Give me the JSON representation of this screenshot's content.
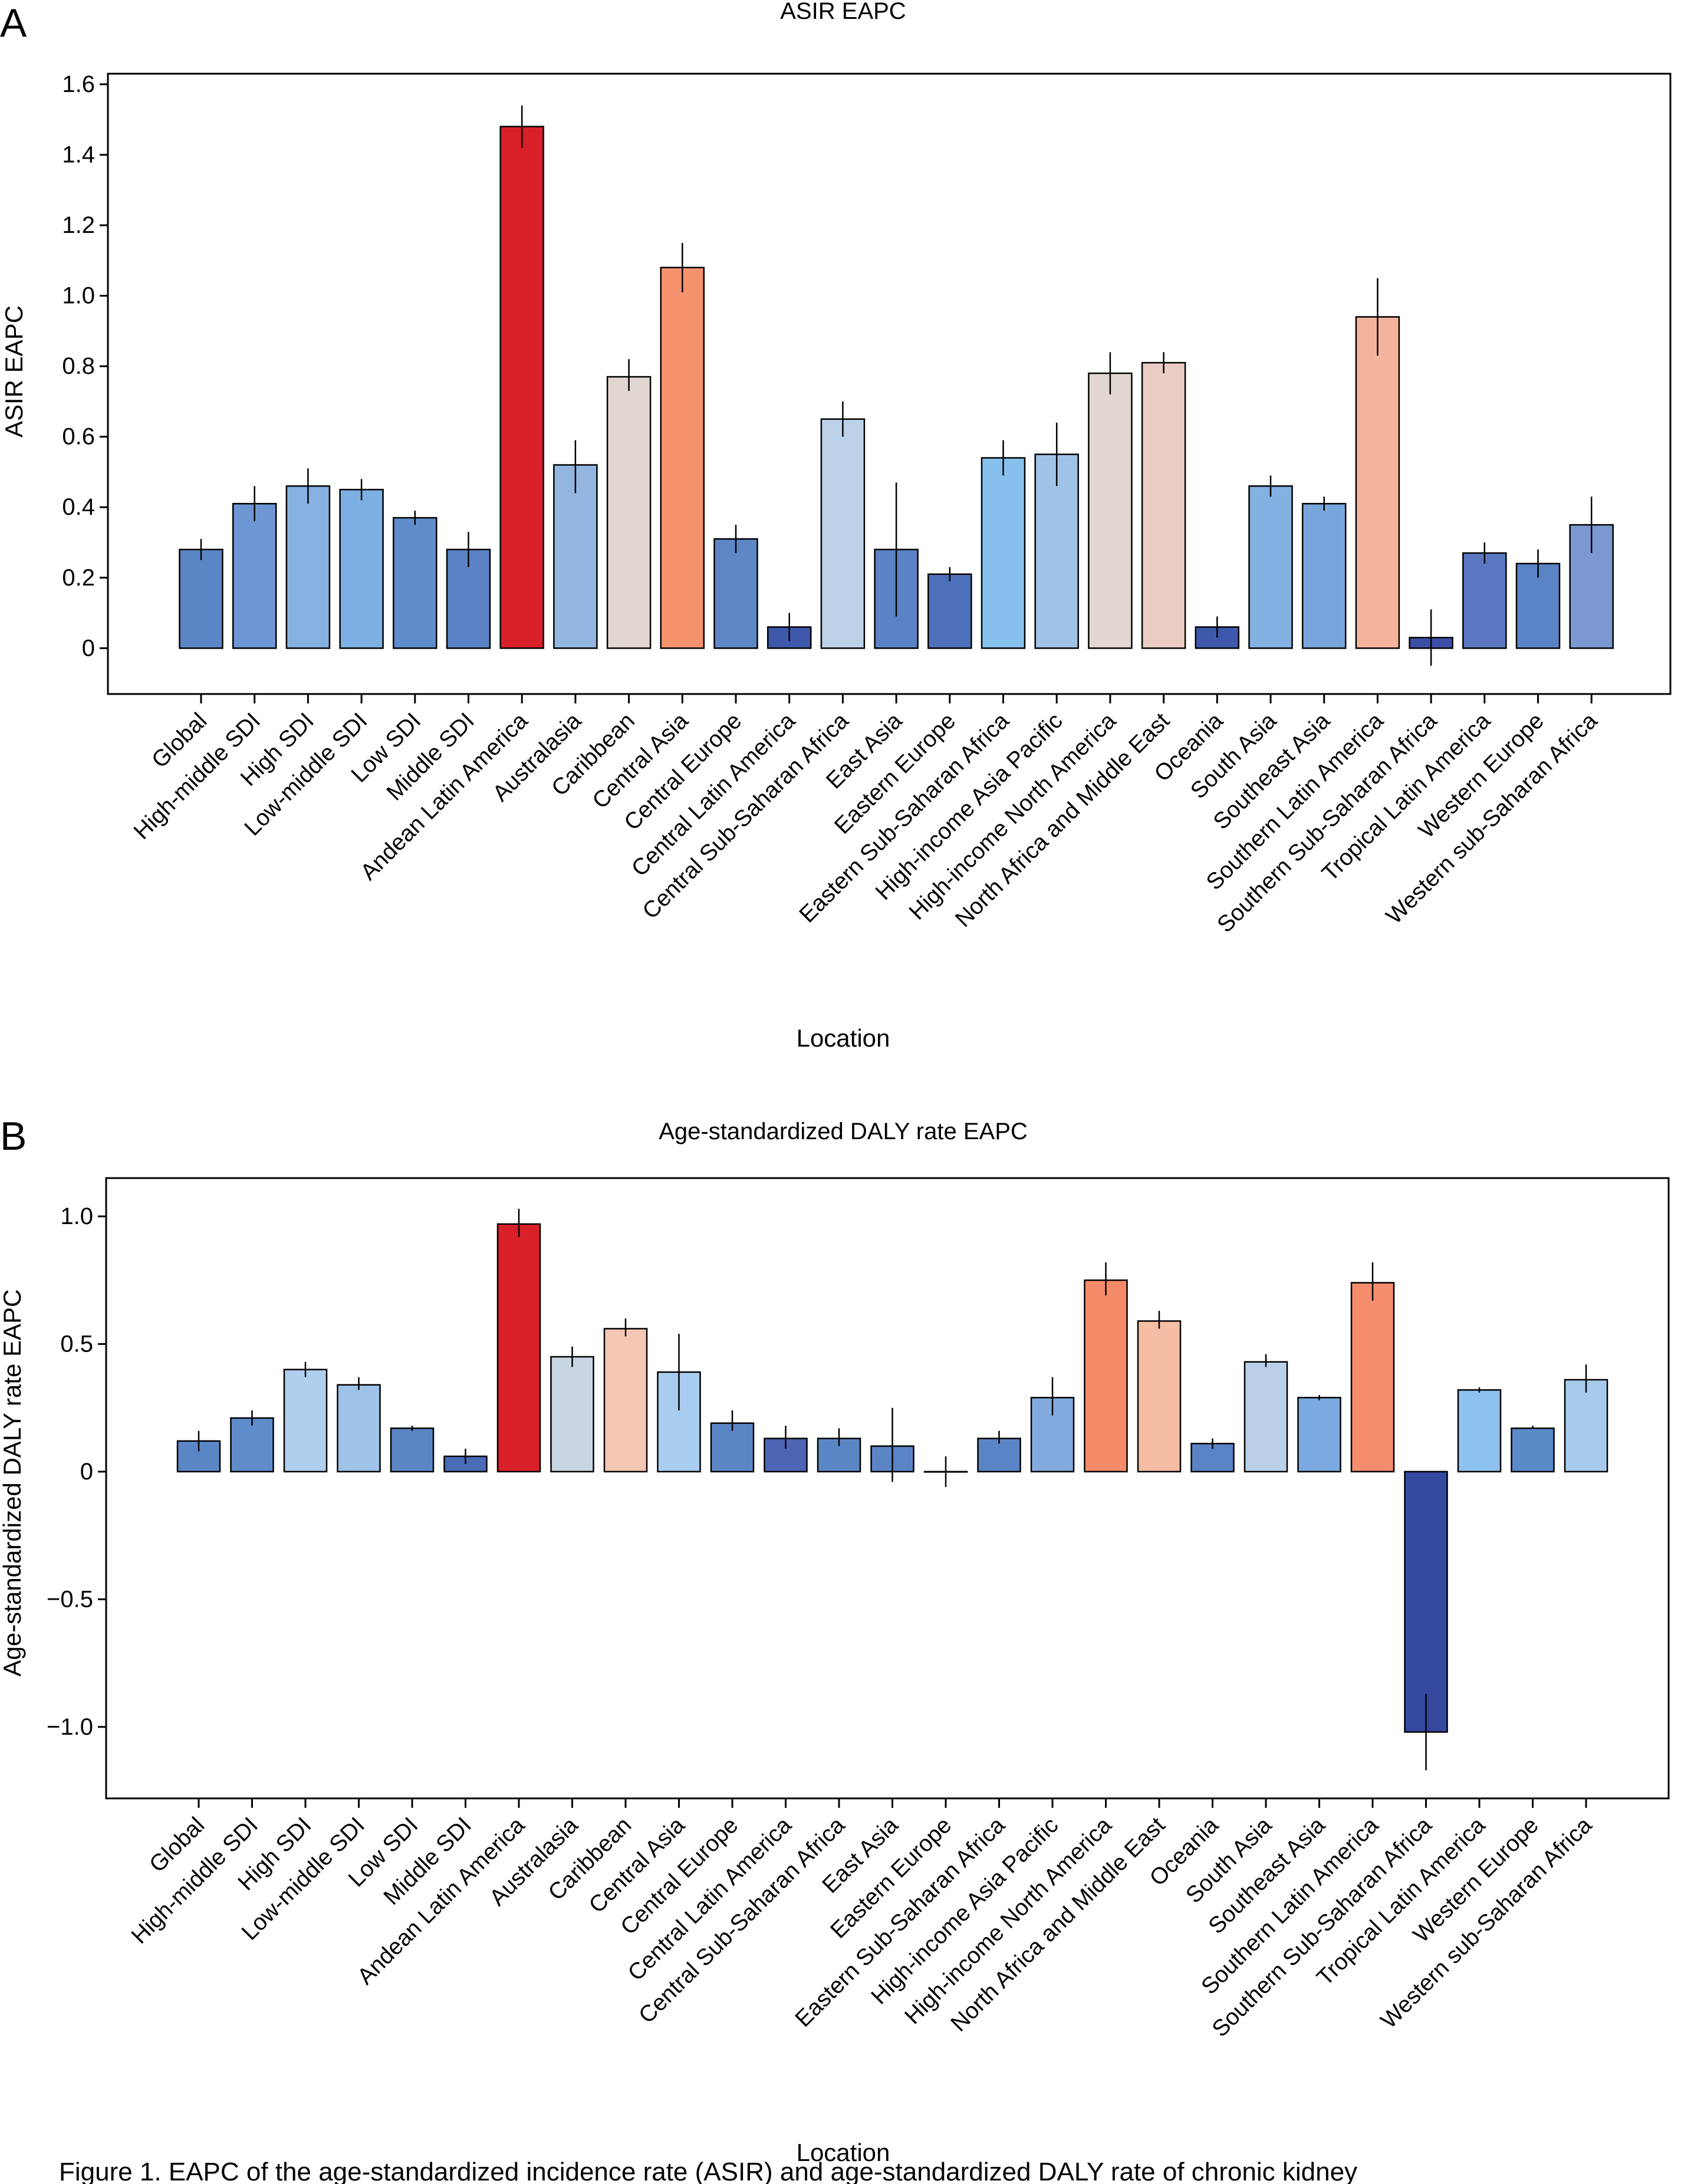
{
  "figure": {
    "caption": "Figure 1. EAPC of the age-standardized incidence rate (ASIR) and age-standardized DALY rate of chronic kidney"
  },
  "chart_data": [
    {
      "type": "bar",
      "panel_label": "A",
      "title": "ASIR EAPC",
      "xlabel": "Location",
      "ylabel": "ASIR EAPC",
      "ylim": [
        -0.13,
        1.63
      ],
      "yticks": [
        0,
        0.2,
        0.4,
        0.6,
        0.8,
        1.0,
        1.2,
        1.4,
        1.6
      ],
      "ytick_labels": [
        "0",
        "0.2",
        "0.4",
        "0.6",
        "0.8",
        "1.0",
        "1.2",
        "1.4",
        "1.6"
      ],
      "grid": false,
      "categories": [
        "Global",
        "High-middle SDI",
        "High SDI",
        "Low-middle SDI",
        "Low SDI",
        "Middle SDI",
        "Andean Latin America",
        "Australasia",
        "Caribbean",
        "Central Asia",
        "Central Europe",
        "Central Latin America",
        "Central Sub-Saharan Africa",
        "East Asia",
        "Eastern Europe",
        "Eastern Sub-Saharan Africa",
        "High-income Asia Pacific",
        "High-income North America",
        "North Africa and Middle East",
        "Oceania",
        "South Asia",
        "Southeast Asia",
        "Southern Latin America",
        "Southern Sub-Saharan Africa",
        "Tropical Latin America",
        "Western Europe",
        "Western sub-Saharan Africa"
      ],
      "values": [
        0.28,
        0.41,
        0.46,
        0.45,
        0.37,
        0.28,
        1.48,
        0.52,
        0.77,
        1.08,
        0.31,
        0.06,
        0.65,
        0.28,
        0.21,
        0.54,
        0.55,
        0.78,
        0.81,
        0.06,
        0.46,
        0.41,
        0.94,
        0.03,
        0.27,
        0.24,
        0.35
      ],
      "err_low": [
        0.25,
        0.36,
        0.41,
        0.42,
        0.35,
        0.23,
        1.42,
        0.44,
        0.73,
        1.01,
        0.27,
        0.02,
        0.6,
        0.09,
        0.19,
        0.49,
        0.46,
        0.72,
        0.78,
        0.03,
        0.43,
        0.39,
        0.83,
        -0.05,
        0.24,
        0.2,
        0.27
      ],
      "err_high": [
        0.31,
        0.46,
        0.51,
        0.48,
        0.39,
        0.33,
        1.54,
        0.59,
        0.82,
        1.15,
        0.35,
        0.1,
        0.7,
        0.47,
        0.23,
        0.59,
        0.64,
        0.84,
        0.84,
        0.09,
        0.49,
        0.43,
        1.05,
        0.11,
        0.3,
        0.28,
        0.43
      ],
      "colors": [
        "#5b86c6",
        "#6d96d2",
        "#86b1e0",
        "#7db0e2",
        "#5f8ccb",
        "#5b82c4",
        "#d92029",
        "#93b6e0",
        "#e2d6d2",
        "#f4926e",
        "#5f86c6",
        "#3e58ab",
        "#bcd2e8",
        "#5b82c4",
        "#4e70bb",
        "#86c0ec",
        "#a0c2e6",
        "#e2d7d2",
        "#ebccc2",
        "#3e58ab",
        "#82b1e2",
        "#78a6dc",
        "#f4b39c",
        "#3c4ea6",
        "#5b77c1",
        "#5b84c6",
        "#7b98d0"
      ]
    },
    {
      "type": "bar",
      "panel_label": "B",
      "title": "Age-standardized DALY rate EAPC",
      "xlabel": "Location",
      "ylabel": "Age-standardized DALY rate EAPC",
      "ylim": [
        -1.28,
        1.15
      ],
      "yticks": [
        -1.0,
        -0.5,
        0,
        0.5,
        1.0
      ],
      "ytick_labels": [
        "−1.0",
        "−0.5",
        "0",
        "0.5",
        "1.0"
      ],
      "grid": false,
      "categories": [
        "Global",
        "High-middle SDI",
        "High SDI",
        "Low-middle SDI",
        "Low SDI",
        "Middle SDI",
        "Andean Latin America",
        "Australasia",
        "Caribbean",
        "Central Asia",
        "Central Europe",
        "Central Latin America",
        "Central Sub-Saharan Africa",
        "East Asia",
        "Eastern Europe",
        "Eastern Sub-Saharan Africa",
        "High-income Asia Pacific",
        "High-income North America",
        "North Africa and Middle East",
        "Oceania",
        "South Asia",
        "Southeast Asia",
        "Southern Latin America",
        "Southern Sub-Saharan Africa",
        "Tropical Latin America",
        "Western Europe",
        "Western sub-Saharan Africa"
      ],
      "values": [
        0.12,
        0.21,
        0.4,
        0.34,
        0.17,
        0.06,
        0.97,
        0.45,
        0.56,
        0.39,
        0.19,
        0.13,
        0.13,
        0.1,
        0.0,
        0.13,
        0.29,
        0.75,
        0.59,
        0.11,
        0.43,
        0.29,
        0.74,
        -1.02,
        0.32,
        0.17,
        0.36
      ],
      "err_low": [
        0.08,
        0.18,
        0.37,
        0.32,
        0.16,
        0.03,
        0.92,
        0.41,
        0.53,
        0.24,
        0.16,
        0.09,
        0.1,
        -0.04,
        -0.06,
        0.11,
        0.22,
        0.69,
        0.56,
        0.09,
        0.41,
        0.28,
        0.67,
        -1.17,
        0.31,
        0.17,
        0.31
      ],
      "err_high": [
        0.16,
        0.24,
        0.43,
        0.37,
        0.18,
        0.09,
        1.03,
        0.49,
        0.6,
        0.54,
        0.24,
        0.18,
        0.17,
        0.25,
        0.06,
        0.16,
        0.37,
        0.82,
        0.63,
        0.13,
        0.46,
        0.3,
        0.82,
        -0.87,
        0.33,
        0.18,
        0.42
      ],
      "colors": [
        "#5b86c6",
        "#5f8ccb",
        "#b0cfee",
        "#9ec2e8",
        "#5b86c6",
        "#4a6cb6",
        "#d92029",
        "#c7d6e2",
        "#f4c7b4",
        "#a9cdef",
        "#5b86c6",
        "#4e65b3",
        "#5b86c6",
        "#5b84c6",
        "#4a66b4",
        "#5b84c6",
        "#82aadc",
        "#f58b68",
        "#f5bda4",
        "#5b84c6",
        "#bad0e8",
        "#7aaadf",
        "#f58d6c",
        "#3448a0",
        "#8ec2ee",
        "#5b8ac8",
        "#a8cbed"
      ]
    }
  ]
}
